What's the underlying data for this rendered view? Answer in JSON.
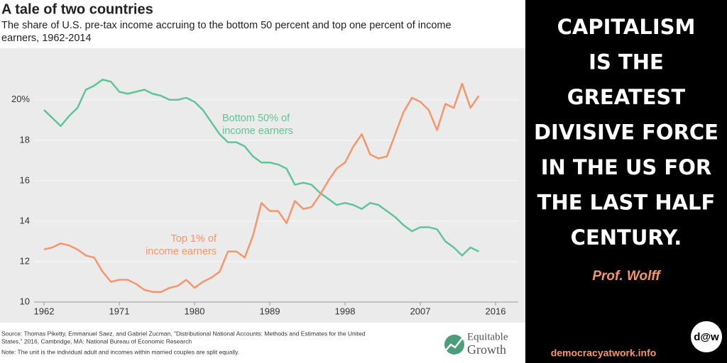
{
  "chart_data": {
    "type": "line",
    "title": "A tale of two countries",
    "subtitle": [
      "The share of U.S. pre-tax income accruing to the bottom 50 percent and top one percent of income",
      "earners, 1962-2014"
    ],
    "x": [
      1962,
      1963,
      1964,
      1965,
      1966,
      1967,
      1968,
      1969,
      1970,
      1971,
      1972,
      1973,
      1974,
      1975,
      1976,
      1977,
      1978,
      1979,
      1980,
      1981,
      1982,
      1983,
      1984,
      1985,
      1986,
      1987,
      1988,
      1989,
      1990,
      1991,
      1992,
      1993,
      1994,
      1995,
      1996,
      1997,
      1998,
      1999,
      2000,
      2001,
      2002,
      2003,
      2004,
      2005,
      2006,
      2007,
      2008,
      2009,
      2010,
      2011,
      2012,
      2013,
      2014
    ],
    "series": [
      {
        "name": [
          "Bottom 50% of",
          "income earners"
        ],
        "color": "#5fc49b",
        "values": [
          19.5,
          19.1,
          18.7,
          19.2,
          19.6,
          20.5,
          20.7,
          21.0,
          20.9,
          20.4,
          20.3,
          20.4,
          20.5,
          20.3,
          20.2,
          20.0,
          20.0,
          20.1,
          19.9,
          19.5,
          18.9,
          18.3,
          17.9,
          17.9,
          17.7,
          17.2,
          16.9,
          16.9,
          16.8,
          16.6,
          15.8,
          15.9,
          15.8,
          15.4,
          15.1,
          14.8,
          14.9,
          14.8,
          14.6,
          14.9,
          14.8,
          14.5,
          14.2,
          13.8,
          13.5,
          13.7,
          13.7,
          13.6,
          13.0,
          12.7,
          12.3,
          12.7,
          12.5
        ]
      },
      {
        "name": [
          "Top 1% of",
          "income earners"
        ],
        "color": "#f5966a",
        "values": [
          12.6,
          12.7,
          12.9,
          12.8,
          12.6,
          12.3,
          12.2,
          11.5,
          11.0,
          11.1,
          11.1,
          10.9,
          10.6,
          10.5,
          10.5,
          10.7,
          10.8,
          11.1,
          10.7,
          11.0,
          11.2,
          11.5,
          12.5,
          12.5,
          12.2,
          13.3,
          14.9,
          14.5,
          14.5,
          13.9,
          15.0,
          14.6,
          14.7,
          15.3,
          16.0,
          16.6,
          16.9,
          17.7,
          18.3,
          17.3,
          17.1,
          17.2,
          18.3,
          19.4,
          20.1,
          19.9,
          19.5,
          18.5,
          19.8,
          19.6,
          20.8,
          19.6,
          20.2
        ]
      }
    ],
    "xlim": [
      1962,
      2016
    ],
    "xticks": [
      1962,
      1971,
      1980,
      1989,
      1998,
      2007,
      2016
    ],
    "ylim": [
      10,
      21.5
    ],
    "yticks": [
      10,
      12,
      14,
      16,
      18,
      {
        "value": 20,
        "label": "20%"
      }
    ],
    "grid": true,
    "source": [
      "Source: Thomas Piketty, Emmanuel Saez, and Gabriel Zucman, \"Distributional National Accounts: Methods and Estimates for the United",
      "States,\" 2016, Cambridge, MA: National Bureau of Economic Research"
    ],
    "note": "Note: The unit is the individual adult and incomes within married couples are split equally.",
    "logo": [
      "Equitable",
      "Growth"
    ]
  },
  "quote": {
    "lines": [
      "CAPITALISM",
      "IS THE",
      "GREATEST",
      "DIVISIVE FORCE",
      "IN THE US FOR",
      "THE LAST HALF",
      "CENTURY."
    ],
    "author": "Prof. Wolff",
    "site": "democracyatwork.info",
    "badge": "d@w"
  }
}
